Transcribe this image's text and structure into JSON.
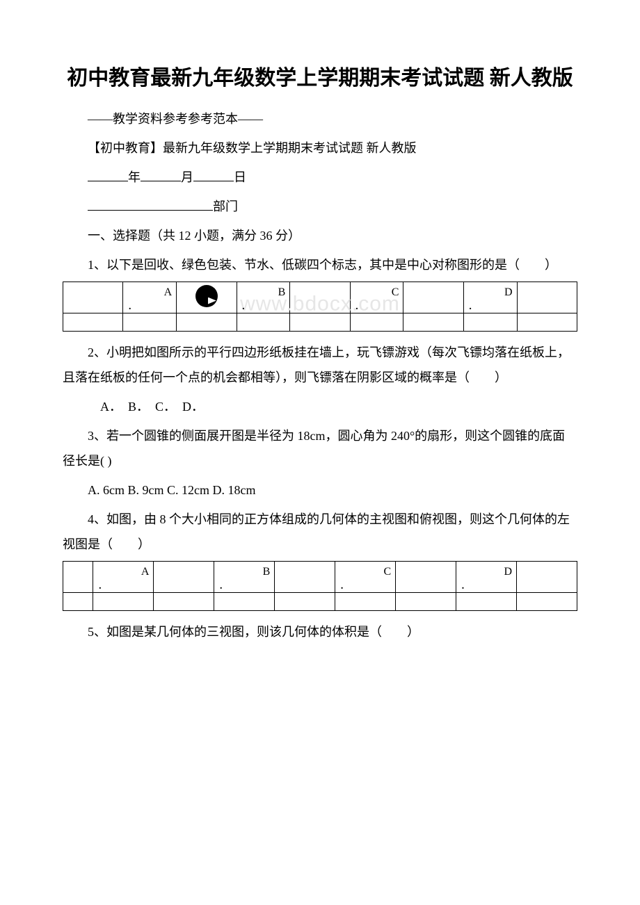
{
  "title": "初中教育最新九年级数学上学期期末考试试题 新人教版",
  "subtitle_ref": "——教学资料参考参考范本——",
  "subtitle_name": "【初中教育】最新九年级数学上学期期末考试试题 新人教版",
  "date_year": "年",
  "date_month": "月",
  "date_day": "日",
  "department": "部门",
  "section1": "一、选择题（共 12 小题，满分 36 分）",
  "q1": "1、以下是回收、绿色包装、节水、低碳四个标志，其中是中心对称图形的是（　　）",
  "q2": "2、小明把如图所示的平行四边形纸板挂在墙上，玩飞镖游戏（每次飞镖均落在纸板上，且落在纸板的任何一个点的机会都相等），则飞镖落在阴影区域的概率是（　　）",
  "q2_opts": "　A．　B．　C．　D．",
  "q3": "3、若一个圆锥的侧面展开图是半径为 18cm，圆心角为 240°的扇形，则这个圆锥的底面径长是( )",
  "q3_opts": "A. 6cm B. 9cm C. 12cm D. 18cm",
  "q4": "4、如图，由 8 个大小相同的正方体组成的几何体的主视图和俯视图，则这个几何体的左视图是（　　）",
  "q5": "5、如图是某几何体的三视图，则该几何体的体积是（　　）",
  "options": {
    "A": "A",
    "B": "B",
    "C": "C",
    "D": "D",
    "dot": "．"
  },
  "watermark": "www.bdocx.com",
  "colors": {
    "text": "#000000",
    "bg": "#ffffff",
    "border": "#000000",
    "watermark": "#e6e6e6"
  }
}
